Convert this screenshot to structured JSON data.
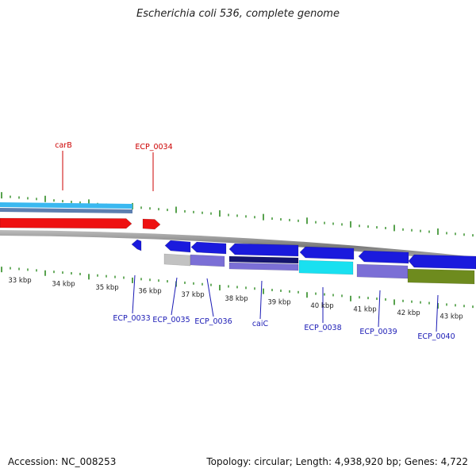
{
  "title": "Escherichia coli 536, complete genome",
  "footer": {
    "accession": "Accession: NC_008253",
    "summary": "Topology: circular; Length: 4,938,920 bp; Genes: 4,722"
  },
  "colors": {
    "tick_green": "#2e8b22",
    "label_red": "#cc0000",
    "label_blue": "#1a1ab5",
    "backbone": "#8a8a8a",
    "gene_blue": "#1a1add",
    "gene_red": "#ee1111",
    "gene_lavender": "#7b6fd6",
    "gene_navy": "#15156e",
    "gene_cyan": "#19e0f0",
    "gene_olive": "#6e8b1e",
    "gene_gray": "#c2c2c2",
    "band_lightblue": "#3ab8f0",
    "band_steel": "#5c7fb0"
  },
  "kbp_labels": [
    {
      "label": "33 kbp"
    },
    {
      "label": "34 kbp"
    },
    {
      "label": "35 kbp"
    },
    {
      "label": "36 kbp"
    },
    {
      "label": "37 kbp"
    },
    {
      "label": "38 kbp"
    },
    {
      "label": "39 kbp"
    },
    {
      "label": "40 kbp"
    },
    {
      "label": "41 kbp"
    },
    {
      "label": "42 kbp"
    },
    {
      "label": "43 kbp"
    }
  ],
  "top_genes": [
    {
      "name": "carB"
    },
    {
      "name": "ECP_0034"
    }
  ],
  "bottom_genes": [
    {
      "name": "ECP_0033"
    },
    {
      "name": "ECP_0035"
    },
    {
      "name": "ECP_0036"
    },
    {
      "name": "caiC"
    },
    {
      "name": "ECP_0038"
    },
    {
      "name": "ECP_0039"
    },
    {
      "name": "ECP_0040"
    }
  ]
}
